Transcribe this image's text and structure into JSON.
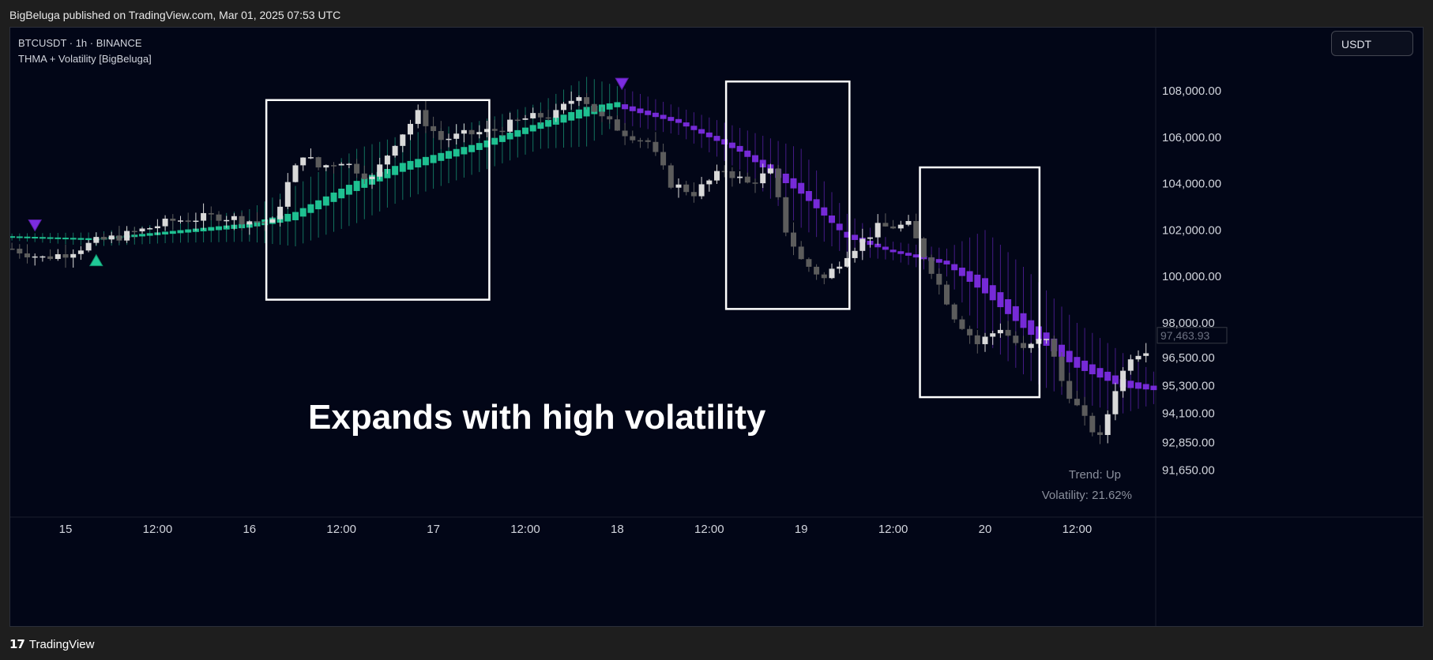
{
  "publisher_line": "BigBeluga published on TradingView.com, Mar 01, 2025 07:53 UTC",
  "symbol_line": "BTCUSDT · 1h · BINANCE",
  "indicator_line": "THMA + Volatility [BigBeluga]",
  "currency_button": "USDT",
  "footer_brand": "TradingView",
  "colors": {
    "background": "#020617",
    "bull_band": "#20c997",
    "bear_band": "#7b2ce0",
    "candle_up": "#d9d9d9",
    "candle_down": "#5c5c5c",
    "box": "#ffffff"
  },
  "chart_data": {
    "type": "candlestick",
    "title": "Expands with high volatility",
    "price_ticks": [
      108000,
      106000,
      104000,
      102000,
      100000,
      98000,
      96500,
      95300,
      94100,
      92850,
      91650
    ],
    "price_tick_labels": [
      "108,000.00",
      "106,000.00",
      "104,000.00",
      "102,000.00",
      "100,000.00",
      "98,000.00",
      "96,500.00",
      "95,300.00",
      "94,100.00",
      "92,850.00",
      "91,650.00"
    ],
    "time_labels": [
      "15",
      "12:00",
      "16",
      "12:00",
      "17",
      "12:00",
      "18",
      "12:00",
      "19",
      "12:00",
      "20",
      "12:00"
    ],
    "time_label_hours": [
      0,
      12,
      24,
      36,
      48,
      60,
      72,
      84,
      96,
      108,
      120,
      132
    ],
    "last_price_label": "97,463.93",
    "status": {
      "trend": "Trend: Up",
      "volatility": "Volatility: 21.62%"
    },
    "signals": [
      {
        "type": "bearish",
        "hour": -4,
        "price": 102200
      },
      {
        "type": "bullish",
        "hour": 4,
        "price": 100700
      },
      {
        "type": "bearish",
        "hour": 72.6,
        "price": 108300
      }
    ],
    "highlight_boxes": [
      {
        "hour_start": 26.2,
        "hour_end": 55.3,
        "price_high": 107600,
        "price_low": 99000
      },
      {
        "hour_start": 86.2,
        "hour_end": 102.3,
        "price_high": 108400,
        "price_low": 98600
      },
      {
        "hour_start": 111.5,
        "hour_end": 127.1,
        "price_high": 104700,
        "price_low": 94800
      }
    ],
    "band_anchors": [
      {
        "hour": -7,
        "mid": 101700,
        "half": 150
      },
      {
        "hour": 4,
        "mid": 101600,
        "half": 300
      },
      {
        "hour": 14,
        "mid": 101900,
        "half": 450
      },
      {
        "hour": 24,
        "mid": 102200,
        "half": 700
      },
      {
        "hour": 30,
        "mid": 102600,
        "half": 1300
      },
      {
        "hour": 38,
        "mid": 103900,
        "half": 1600
      },
      {
        "hour": 44,
        "mid": 104700,
        "half": 1400
      },
      {
        "hour": 54,
        "mid": 105600,
        "half": 1100
      },
      {
        "hour": 62,
        "mid": 106500,
        "half": 1000
      },
      {
        "hour": 68,
        "mid": 107100,
        "half": 1500
      },
      {
        "hour": 72,
        "mid": 107400,
        "half": 800
      },
      {
        "hour": 80,
        "mid": 106700,
        "half": 600
      },
      {
        "hour": 88,
        "mid": 105500,
        "half": 900
      },
      {
        "hour": 96,
        "mid": 103800,
        "half": 1700
      },
      {
        "hour": 102,
        "mid": 101800,
        "half": 900
      },
      {
        "hour": 108,
        "mid": 101100,
        "half": 400
      },
      {
        "hour": 115,
        "mid": 100600,
        "half": 600
      },
      {
        "hour": 120,
        "mid": 99600,
        "half": 2400
      },
      {
        "hour": 126,
        "mid": 97800,
        "half": 2300
      },
      {
        "hour": 132,
        "mid": 96300,
        "half": 1700
      },
      {
        "hour": 138,
        "mid": 95400,
        "half": 1300
      },
      {
        "hour": 142,
        "mid": 95200,
        "half": 700
      }
    ],
    "candle_anchors": [
      {
        "hour": -7,
        "price": 101200
      },
      {
        "hour": -3,
        "price": 100800
      },
      {
        "hour": 0,
        "price": 101000
      },
      {
        "hour": 4,
        "price": 101500
      },
      {
        "hour": 8,
        "price": 101800
      },
      {
        "hour": 14,
        "price": 102400
      },
      {
        "hour": 20,
        "price": 102600
      },
      {
        "hour": 24,
        "price": 102400
      },
      {
        "hour": 27,
        "price": 102300
      },
      {
        "hour": 29,
        "price": 104000
      },
      {
        "hour": 31,
        "price": 105300
      },
      {
        "hour": 33,
        "price": 104700
      },
      {
        "hour": 36,
        "price": 105000
      },
      {
        "hour": 40,
        "price": 104200
      },
      {
        "hour": 43,
        "price": 105800
      },
      {
        "hour": 46,
        "price": 107000
      },
      {
        "hour": 49,
        "price": 105900
      },
      {
        "hour": 52,
        "price": 106100
      },
      {
        "hour": 56,
        "price": 106300
      },
      {
        "hour": 60,
        "price": 106800
      },
      {
        "hour": 64,
        "price": 107000
      },
      {
        "hour": 67,
        "price": 107900
      },
      {
        "hour": 70,
        "price": 106800
      },
      {
        "hour": 73,
        "price": 106200
      },
      {
        "hour": 76,
        "price": 105800
      },
      {
        "hour": 79,
        "price": 104000
      },
      {
        "hour": 82,
        "price": 103600
      },
      {
        "hour": 86,
        "price": 104600
      },
      {
        "hour": 89,
        "price": 104000
      },
      {
        "hour": 92,
        "price": 104500
      },
      {
        "hour": 94,
        "price": 102000
      },
      {
        "hour": 96,
        "price": 100700
      },
      {
        "hour": 99,
        "price": 99900
      },
      {
        "hour": 102,
        "price": 101000
      },
      {
        "hour": 106,
        "price": 102100
      },
      {
        "hour": 110,
        "price": 102200
      },
      {
        "hour": 113,
        "price": 100300
      },
      {
        "hour": 116,
        "price": 98300
      },
      {
        "hour": 119,
        "price": 97100
      },
      {
        "hour": 122,
        "price": 97800
      },
      {
        "hour": 125,
        "price": 96800
      },
      {
        "hour": 128,
        "price": 97400
      },
      {
        "hour": 130,
        "price": 95500
      },
      {
        "hour": 133,
        "price": 93800
      },
      {
        "hour": 135,
        "price": 93000
      },
      {
        "hour": 137,
        "price": 95200
      },
      {
        "hour": 139,
        "price": 96600
      },
      {
        "hour": 141,
        "price": 96900
      },
      {
        "hour": 143,
        "price": 97400
      }
    ]
  }
}
